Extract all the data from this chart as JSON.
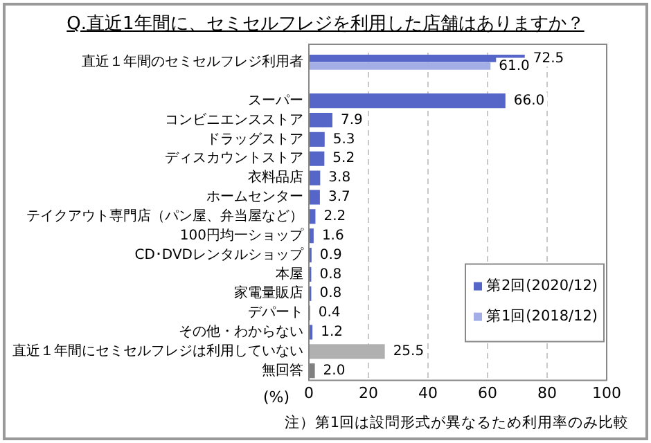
{
  "chart_data": {
    "type": "bar",
    "orientation": "horizontal",
    "title": "Q.直近1年間に、セミセルフレジを利用した店舗はありますか？",
    "xlabel": "(%)",
    "annotations": [
      "注）第1回は設問形式が異なるため利用率のみ比較"
    ],
    "categories": [
      "直近１年間のセミセルフレジ利用者",
      null,
      "スーパー",
      "コンビニエンスストア",
      "ドラッグストア",
      "ディスカウントストア",
      "衣料品店",
      "ホームセンター",
      "テイクアウト専門店（パン屋、弁当屋など）",
      "100円均一ショップ",
      "CD･DVDレンタルショップ",
      "本屋",
      "家電量販店",
      "デパート",
      "その他・わからない",
      "直近１年間にセミセルフレジは利用していない",
      "無回答"
    ],
    "series": [
      {
        "name": "第2回(2020/12)",
        "color": "#5566c8",
        "colors": [
          "#5566c8",
          null,
          "#5566c8",
          "#5566c8",
          "#5566c8",
          "#5566c8",
          "#5566c8",
          "#5566c8",
          "#5566c8",
          "#5566c8",
          "#5566c8",
          "#5566c8",
          "#5566c8",
          "#5566c8",
          "#5566c8",
          "#b0b0b0",
          "#808080"
        ],
        "values": [
          72.5,
          null,
          66.0,
          7.9,
          5.3,
          5.2,
          3.8,
          3.7,
          2.2,
          1.6,
          0.9,
          0.8,
          0.8,
          0.4,
          1.2,
          25.5,
          2.0
        ],
        "value_labels": [
          "72.5",
          null,
          "66.0",
          "7.9",
          "5.3",
          "5.2",
          "3.8",
          "3.7",
          "2.2",
          "1.6",
          "0.9",
          "0.8",
          "0.8",
          "0.4",
          "1.2",
          "25.5",
          "2.0"
        ]
      },
      {
        "name": "第1回(2018/12)",
        "color": "#a3aee6",
        "values": [
          61.0,
          null,
          null,
          null,
          null,
          null,
          null,
          null,
          null,
          null,
          null,
          null,
          null,
          null,
          null,
          null,
          null
        ],
        "value_labels": [
          "61.0",
          null,
          null,
          null,
          null,
          null,
          null,
          null,
          null,
          null,
          null,
          null,
          null,
          null,
          null,
          null,
          null
        ]
      }
    ],
    "xlim": [
      0,
      100
    ],
    "xticks": [
      0,
      20,
      40,
      60,
      80,
      100
    ],
    "grid": "x",
    "legend": "bottom right"
  }
}
